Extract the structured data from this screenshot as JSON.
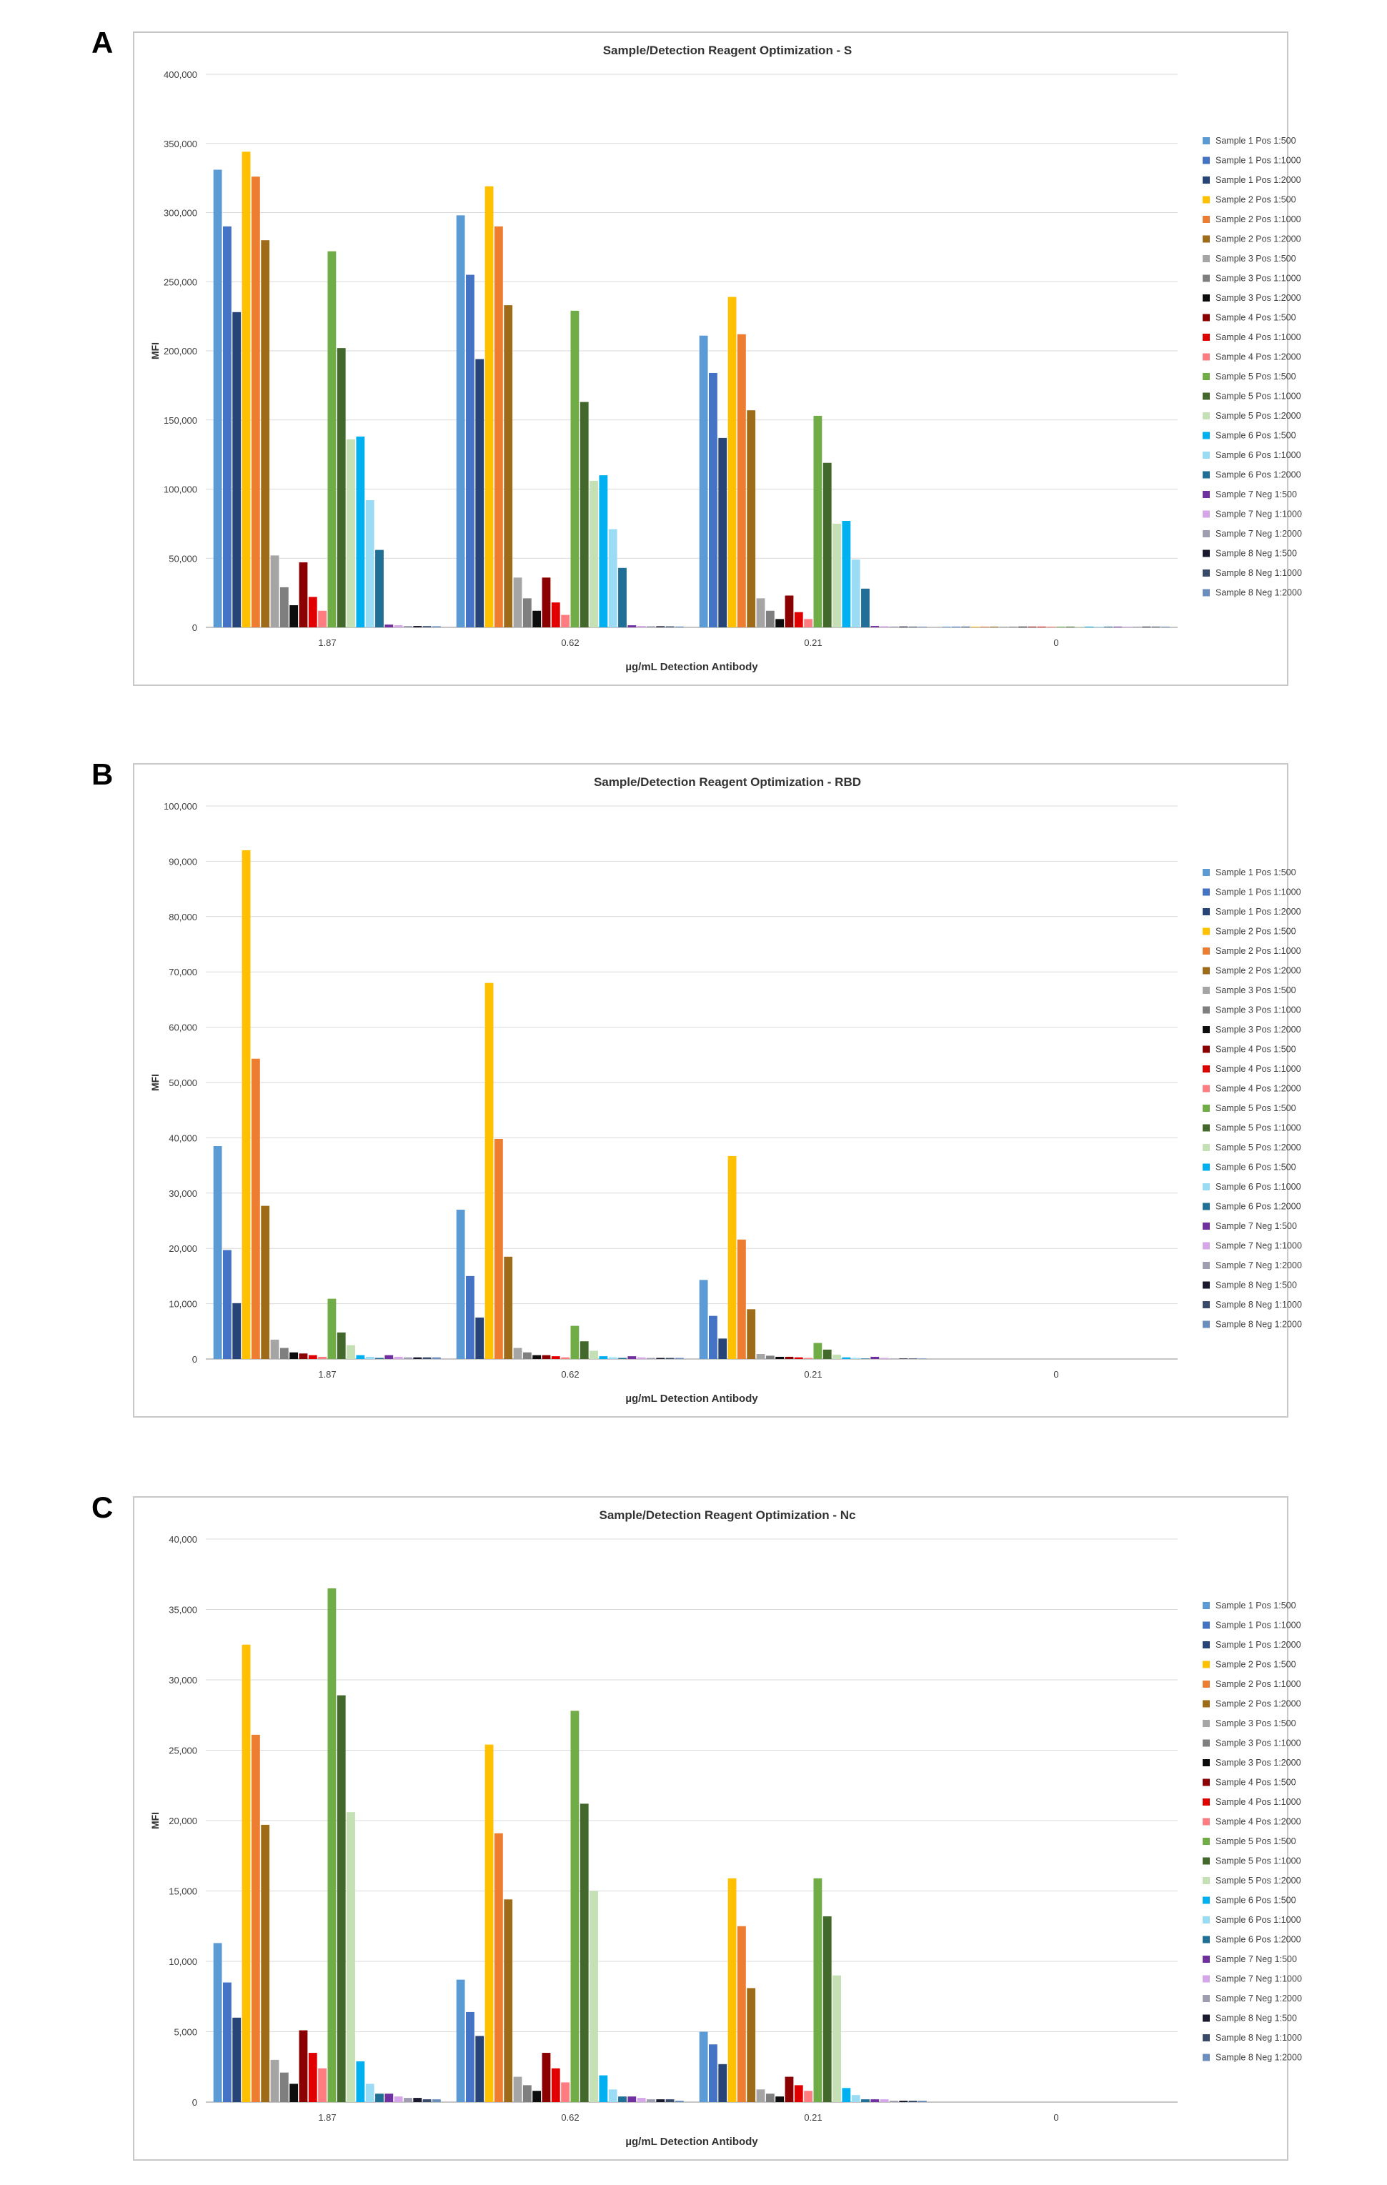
{
  "panels": [
    "A",
    "B",
    "C"
  ],
  "chart_data": [
    {
      "type": "bar",
      "title": "Sample/Detection Reagent Optimization - S",
      "xlabel": "µg/mL Detection Antibody",
      "ylabel": "MFI",
      "ylim": [
        0,
        400000
      ],
      "yticks": [
        "0",
        "50,000",
        "100,000",
        "150,000",
        "200,000",
        "250,000",
        "300,000",
        "350,000",
        "400,000"
      ],
      "grid": true,
      "legend_position": "right",
      "categories": [
        "1.87",
        "0.62",
        "0.21",
        "0"
      ],
      "series": [
        {
          "name": "Sample 1 Pos 1:500",
          "color": "#5b9bd5",
          "values": [
            331000,
            298000,
            211000,
            500
          ]
        },
        {
          "name": "Sample 1 Pos 1:1000",
          "color": "#4472c4",
          "values": [
            290000,
            255000,
            184000,
            500
          ]
        },
        {
          "name": "Sample 1 Pos 1:2000",
          "color": "#264478",
          "values": [
            228000,
            194000,
            137000,
            500
          ]
        },
        {
          "name": "Sample 2 Pos 1:500",
          "color": "#ffc000",
          "values": [
            344000,
            319000,
            239000,
            500
          ]
        },
        {
          "name": "Sample 2 Pos 1:1000",
          "color": "#ed7d31",
          "values": [
            326000,
            290000,
            212000,
            500
          ]
        },
        {
          "name": "Sample 2 Pos 1:2000",
          "color": "#9e6b18",
          "values": [
            280000,
            233000,
            157000,
            500
          ]
        },
        {
          "name": "Sample 3 Pos 1:500",
          "color": "#a5a5a5",
          "values": [
            52000,
            36000,
            21000,
            500
          ]
        },
        {
          "name": "Sample 3 Pos 1:1000",
          "color": "#7f7f7f",
          "values": [
            29000,
            21000,
            12000,
            500
          ]
        },
        {
          "name": "Sample 3 Pos 1:2000",
          "color": "#0d0d0d",
          "values": [
            16000,
            12000,
            6000,
            500
          ]
        },
        {
          "name": "Sample 4 Pos 1:500",
          "color": "#8b0000",
          "values": [
            47000,
            36000,
            23000,
            500
          ]
        },
        {
          "name": "Sample 4 Pos 1:1000",
          "color": "#e00000",
          "values": [
            22000,
            18000,
            11000,
            500
          ]
        },
        {
          "name": "Sample 4 Pos 1:2000",
          "color": "#ff7c80",
          "values": [
            12000,
            9000,
            6000,
            500
          ]
        },
        {
          "name": "Sample 5 Pos 1:500",
          "color": "#70ad47",
          "values": [
            272000,
            229000,
            153000,
            500
          ]
        },
        {
          "name": "Sample 5 Pos 1:1000",
          "color": "#43682b",
          "values": [
            202000,
            163000,
            119000,
            500
          ]
        },
        {
          "name": "Sample 5 Pos 1:2000",
          "color": "#c5e0b4",
          "values": [
            136000,
            106000,
            75000,
            500
          ]
        },
        {
          "name": "Sample 6 Pos 1:500",
          "color": "#00b0f0",
          "values": [
            138000,
            110000,
            77000,
            500
          ]
        },
        {
          "name": "Sample 6 Pos 1:1000",
          "color": "#9bdcf5",
          "values": [
            92000,
            71000,
            49000,
            500
          ]
        },
        {
          "name": "Sample 6 Pos 1:2000",
          "color": "#1f6f96",
          "values": [
            56000,
            43000,
            28000,
            500
          ]
        },
        {
          "name": "Sample 7 Neg 1:500",
          "color": "#7030a0",
          "values": [
            2000,
            1500,
            1000,
            500
          ]
        },
        {
          "name": "Sample 7 Neg 1:1000",
          "color": "#d5a6e8",
          "values": [
            1500,
            1000,
            800,
            500
          ]
        },
        {
          "name": "Sample 7 Neg 1:2000",
          "color": "#9e9eb0",
          "values": [
            1000,
            800,
            600,
            500
          ]
        },
        {
          "name": "Sample 8 Neg 1:500",
          "color": "#1a1a2e",
          "values": [
            1000,
            800,
            600,
            500
          ]
        },
        {
          "name": "Sample 8 Neg 1:1000",
          "color": "#3a4a6b",
          "values": [
            900,
            700,
            500,
            500
          ]
        },
        {
          "name": "Sample 8 Neg 1:2000",
          "color": "#6c8ebf",
          "values": [
            800,
            600,
            500,
            500
          ]
        }
      ]
    },
    {
      "type": "bar",
      "title": "Sample/Detection Reagent Optimization - RBD",
      "xlabel": "µg/mL Detection Antibody",
      "ylabel": "MFI",
      "ylim": [
        0,
        100000
      ],
      "yticks": [
        "0",
        "10,000",
        "20,000",
        "30,000",
        "40,000",
        "50,000",
        "60,000",
        "70,000",
        "80,000",
        "90,000",
        "100,000"
      ],
      "grid": true,
      "legend_position": "right",
      "categories": [
        "1.87",
        "0.62",
        "0.21",
        "0"
      ],
      "series": [
        {
          "name": "Sample 1 Pos 1:500",
          "color": "#5b9bd5",
          "values": [
            38500,
            27000,
            14300,
            0
          ]
        },
        {
          "name": "Sample 1 Pos 1:1000",
          "color": "#4472c4",
          "values": [
            19700,
            15000,
            7800,
            0
          ]
        },
        {
          "name": "Sample 1 Pos 1:2000",
          "color": "#264478",
          "values": [
            10100,
            7500,
            3700,
            0
          ]
        },
        {
          "name": "Sample 2 Pos 1:500",
          "color": "#ffc000",
          "values": [
            92000,
            68000,
            36700,
            0
          ]
        },
        {
          "name": "Sample 2 Pos 1:1000",
          "color": "#ed7d31",
          "values": [
            54300,
            39800,
            21600,
            0
          ]
        },
        {
          "name": "Sample 2 Pos 1:2000",
          "color": "#9e6b18",
          "values": [
            27700,
            18500,
            9000,
            0
          ]
        },
        {
          "name": "Sample 3 Pos 1:500",
          "color": "#a5a5a5",
          "values": [
            3500,
            2000,
            900,
            0
          ]
        },
        {
          "name": "Sample 3 Pos 1:1000",
          "color": "#7f7f7f",
          "values": [
            2000,
            1200,
            600,
            0
          ]
        },
        {
          "name": "Sample 3 Pos 1:2000",
          "color": "#0d0d0d",
          "values": [
            1200,
            700,
            400,
            0
          ]
        },
        {
          "name": "Sample 4 Pos 1:500",
          "color": "#8b0000",
          "values": [
            1000,
            700,
            400,
            0
          ]
        },
        {
          "name": "Sample 4 Pos 1:1000",
          "color": "#e00000",
          "values": [
            700,
            500,
            300,
            0
          ]
        },
        {
          "name": "Sample 4 Pos 1:2000",
          "color": "#ff7c80",
          "values": [
            400,
            300,
            200,
            0
          ]
        },
        {
          "name": "Sample 5 Pos 1:500",
          "color": "#70ad47",
          "values": [
            10900,
            6000,
            2900,
            0
          ]
        },
        {
          "name": "Sample 5 Pos 1:1000",
          "color": "#43682b",
          "values": [
            4800,
            3200,
            1700,
            0
          ]
        },
        {
          "name": "Sample 5 Pos 1:2000",
          "color": "#c5e0b4",
          "values": [
            2500,
            1500,
            800,
            0
          ]
        },
        {
          "name": "Sample 6 Pos 1:500",
          "color": "#00b0f0",
          "values": [
            700,
            500,
            300,
            0
          ]
        },
        {
          "name": "Sample 6 Pos 1:1000",
          "color": "#9bdcf5",
          "values": [
            400,
            300,
            200,
            0
          ]
        },
        {
          "name": "Sample 6 Pos 1:2000",
          "color": "#1f6f96",
          "values": [
            200,
            200,
            100,
            0
          ]
        },
        {
          "name": "Sample 7 Neg 1:500",
          "color": "#7030a0",
          "values": [
            700,
            500,
            400,
            0
          ]
        },
        {
          "name": "Sample 7 Neg 1:1000",
          "color": "#d5a6e8",
          "values": [
            400,
            300,
            200,
            0
          ]
        },
        {
          "name": "Sample 7 Neg 1:2000",
          "color": "#9e9eb0",
          "values": [
            300,
            200,
            100,
            0
          ]
        },
        {
          "name": "Sample 8 Neg 1:500",
          "color": "#1a1a2e",
          "values": [
            300,
            200,
            100,
            0
          ]
        },
        {
          "name": "Sample 8 Neg 1:1000",
          "color": "#3a4a6b",
          "values": [
            300,
            200,
            100,
            0
          ]
        },
        {
          "name": "Sample 8 Neg 1:2000",
          "color": "#6c8ebf",
          "values": [
            300,
            200,
            100,
            0
          ]
        }
      ]
    },
    {
      "type": "bar",
      "title": "Sample/Detection Reagent Optimization - Nc",
      "xlabel": "µg/mL Detection Antibody",
      "ylabel": "MFI",
      "ylim": [
        0,
        40000
      ],
      "yticks": [
        "0",
        "5,000",
        "10,000",
        "15,000",
        "20,000",
        "25,000",
        "30,000",
        "35,000",
        "40,000"
      ],
      "grid": true,
      "legend_position": "right",
      "categories": [
        "1.87",
        "0.62",
        "0.21",
        "0"
      ],
      "series": [
        {
          "name": "Sample 1 Pos 1:500",
          "color": "#5b9bd5",
          "values": [
            11300,
            8700,
            5000,
            0
          ]
        },
        {
          "name": "Sample 1 Pos 1:1000",
          "color": "#4472c4",
          "values": [
            8500,
            6400,
            4100,
            0
          ]
        },
        {
          "name": "Sample 1 Pos 1:2000",
          "color": "#264478",
          "values": [
            6000,
            4700,
            2700,
            0
          ]
        },
        {
          "name": "Sample 2 Pos 1:500",
          "color": "#ffc000",
          "values": [
            32500,
            25400,
            15900,
            0
          ]
        },
        {
          "name": "Sample 2 Pos 1:1000",
          "color": "#ed7d31",
          "values": [
            26100,
            19100,
            12500,
            0
          ]
        },
        {
          "name": "Sample 2 Pos 1:2000",
          "color": "#9e6b18",
          "values": [
            19700,
            14400,
            8100,
            0
          ]
        },
        {
          "name": "Sample 3 Pos 1:500",
          "color": "#a5a5a5",
          "values": [
            3000,
            1800,
            900,
            0
          ]
        },
        {
          "name": "Sample 3 Pos 1:1000",
          "color": "#7f7f7f",
          "values": [
            2100,
            1200,
            600,
            0
          ]
        },
        {
          "name": "Sample 3 Pos 1:2000",
          "color": "#0d0d0d",
          "values": [
            1300,
            800,
            400,
            0
          ]
        },
        {
          "name": "Sample 4 Pos 1:500",
          "color": "#8b0000",
          "values": [
            5100,
            3500,
            1800,
            0
          ]
        },
        {
          "name": "Sample 4 Pos 1:1000",
          "color": "#e00000",
          "values": [
            3500,
            2400,
            1200,
            0
          ]
        },
        {
          "name": "Sample 4 Pos 1:2000",
          "color": "#ff7c80",
          "values": [
            2400,
            1400,
            800,
            0
          ]
        },
        {
          "name": "Sample 5 Pos 1:500",
          "color": "#70ad47",
          "values": [
            36500,
            27800,
            15900,
            0
          ]
        },
        {
          "name": "Sample 5 Pos 1:1000",
          "color": "#43682b",
          "values": [
            28900,
            21200,
            13200,
            0
          ]
        },
        {
          "name": "Sample 5 Pos 1:2000",
          "color": "#c5e0b4",
          "values": [
            20600,
            15000,
            9000,
            0
          ]
        },
        {
          "name": "Sample 6 Pos 1:500",
          "color": "#00b0f0",
          "values": [
            2900,
            1900,
            1000,
            0
          ]
        },
        {
          "name": "Sample 6 Pos 1:1000",
          "color": "#9bdcf5",
          "values": [
            1300,
            900,
            500,
            0
          ]
        },
        {
          "name": "Sample 6 Pos 1:2000",
          "color": "#1f6f96",
          "values": [
            600,
            400,
            200,
            0
          ]
        },
        {
          "name": "Sample 7 Neg 1:500",
          "color": "#7030a0",
          "values": [
            600,
            400,
            200,
            0
          ]
        },
        {
          "name": "Sample 7 Neg 1:1000",
          "color": "#d5a6e8",
          "values": [
            400,
            300,
            200,
            0
          ]
        },
        {
          "name": "Sample 7 Neg 1:2000",
          "color": "#9e9eb0",
          "values": [
            300,
            200,
            100,
            0
          ]
        },
        {
          "name": "Sample 8 Neg 1:500",
          "color": "#1a1a2e",
          "values": [
            300,
            200,
            100,
            0
          ]
        },
        {
          "name": "Sample 8 Neg 1:1000",
          "color": "#3a4a6b",
          "values": [
            200,
            200,
            100,
            0
          ]
        },
        {
          "name": "Sample 8 Neg 1:2000",
          "color": "#6c8ebf",
          "values": [
            200,
            100,
            100,
            0
          ]
        }
      ]
    }
  ]
}
